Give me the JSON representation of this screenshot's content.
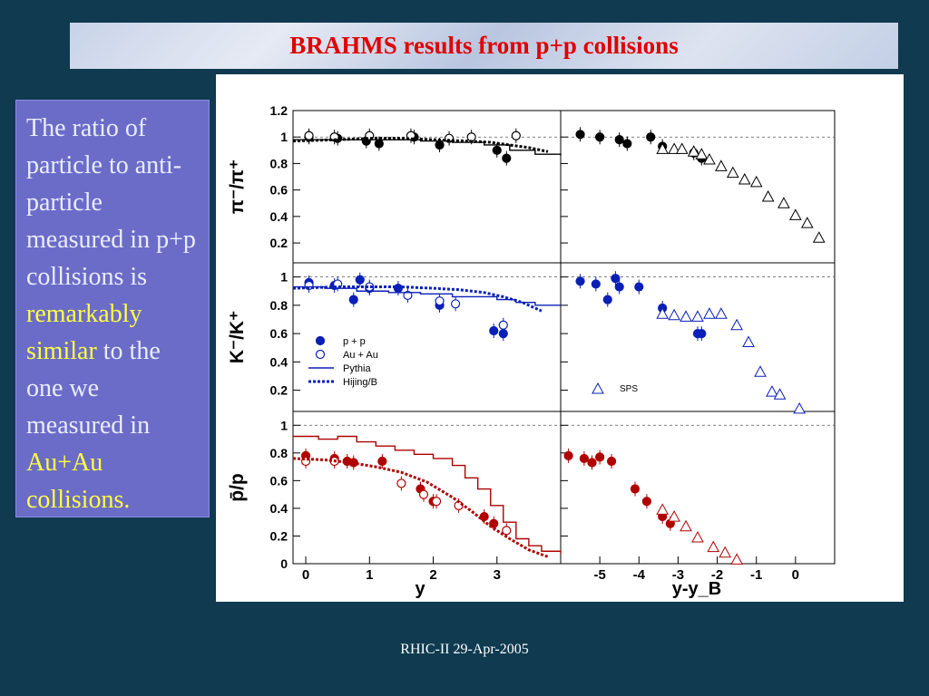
{
  "title": "BRAHMS results from p+p collisions",
  "sidebar": {
    "t1": "The ratio of particle to anti-particle measured in p+p collisions is ",
    "t2": "remarkably similar",
    "t3": " to the one we measured in ",
    "t4": "Au+Au collisions."
  },
  "footer": "RHIC-II 29-Apr-2005",
  "colors": {
    "pion": "#000000",
    "kaon": "#0a1fb8",
    "proton": "#b00000",
    "title": "#e00000",
    "highlight": "#ffff40",
    "sidebar_bg": "#6b6cc8"
  },
  "chart_data": [
    {
      "type": "scatter",
      "panel": "pi-left",
      "ylabel": "π⁻/π⁺",
      "xlabel": "y",
      "xlim": [
        -0.2,
        4.0
      ],
      "ylim": [
        0.05,
        1.2
      ],
      "yticks": [
        0.2,
        0.4,
        0.6,
        0.8,
        1,
        1.2
      ],
      "ref_line": 1,
      "color": "#000000",
      "series": [
        {
          "name": "p + p",
          "marker": "filled-circle",
          "x": [
            0.05,
            0.5,
            0.95,
            1.15,
            1.7,
            2.1,
            3.0,
            3.15
          ],
          "y": [
            1.0,
            0.99,
            0.97,
            0.95,
            1.0,
            0.94,
            0.9,
            0.84
          ]
        },
        {
          "name": "Au + Au",
          "marker": "open-circle",
          "x": [
            0.05,
            0.45,
            1.0,
            1.65,
            2.25,
            2.6,
            3.3
          ],
          "y": [
            1.01,
            1.0,
            1.01,
            1.01,
            0.99,
            1.0,
            1.01
          ]
        },
        {
          "name": "Pythia",
          "style": "step",
          "x": [
            -0.2,
            0.3,
            0.8,
            1.3,
            1.8,
            2.3,
            2.8,
            3.2,
            3.6,
            4.0
          ],
          "y": [
            0.98,
            0.98,
            0.98,
            0.98,
            0.97,
            0.96,
            0.94,
            0.9,
            0.87,
            0.86
          ]
        },
        {
          "name": "Hijing/B",
          "style": "dotted",
          "x": [
            -0.2,
            0.5,
            1.0,
            1.5,
            2.0,
            2.5,
            2.9,
            3.2,
            3.5,
            3.8
          ],
          "y": [
            0.97,
            0.98,
            0.99,
            0.99,
            0.98,
            0.97,
            0.96,
            0.94,
            0.92,
            0.89
          ]
        }
      ]
    },
    {
      "type": "scatter",
      "panel": "pi-right",
      "xlabel": "y-y_B",
      "xlim": [
        -6.0,
        1.0
      ],
      "ylim": [
        0.05,
        1.2
      ],
      "ref_line": 1,
      "color": "#000000",
      "series": [
        {
          "name": "p + p",
          "marker": "filled-circle",
          "x": [
            -5.5,
            -5.0,
            -4.5,
            -4.3,
            -3.7,
            -3.4,
            -2.6,
            -2.4
          ],
          "y": [
            1.02,
            1.0,
            0.98,
            0.95,
            1.0,
            0.93,
            0.88,
            0.84
          ]
        },
        {
          "name": "SPS",
          "marker": "open-triangle",
          "x": [
            -3.4,
            -3.1,
            -2.9,
            -2.6,
            -2.4,
            -2.2,
            -1.9,
            -1.6,
            -1.3,
            -1.0,
            -0.7,
            -0.3,
            0.0,
            0.3,
            0.6
          ],
          "y": [
            0.91,
            0.91,
            0.91,
            0.89,
            0.87,
            0.83,
            0.78,
            0.73,
            0.68,
            0.66,
            0.55,
            0.5,
            0.41,
            0.35,
            0.24
          ]
        }
      ]
    },
    {
      "type": "scatter",
      "panel": "kaon-left",
      "ylabel": "K⁻/K⁺",
      "xlim": [
        -0.2,
        4.0
      ],
      "ylim": [
        0.05,
        1.1
      ],
      "yticks": [
        0.2,
        0.4,
        0.6,
        0.8,
        1
      ],
      "ref_line": 1,
      "color": "#0a1fb8",
      "legend": [
        "p + p",
        "Au + Au",
        "Pythia",
        "Hijing/B"
      ],
      "series": [
        {
          "name": "p + p",
          "marker": "filled-circle",
          "x": [
            0.05,
            0.45,
            0.75,
            0.85,
            1.0,
            1.45,
            2.1,
            2.95,
            3.1
          ],
          "y": [
            0.96,
            0.94,
            0.84,
            0.98,
            0.92,
            0.92,
            0.8,
            0.62,
            0.6
          ]
        },
        {
          "name": "Au + Au",
          "marker": "open-circle",
          "x": [
            0.05,
            0.5,
            1.0,
            1.6,
            2.1,
            2.35,
            3.1
          ],
          "y": [
            0.94,
            0.95,
            0.93,
            0.87,
            0.83,
            0.81,
            0.66
          ]
        },
        {
          "name": "Pythia",
          "style": "step",
          "x": [
            -0.2,
            0.3,
            0.8,
            1.3,
            1.8,
            2.3,
            2.7,
            3.0,
            3.3,
            3.6,
            4.0
          ],
          "y": [
            0.93,
            0.92,
            0.9,
            0.89,
            0.88,
            0.86,
            0.86,
            0.84,
            0.82,
            0.8,
            0.8
          ]
        },
        {
          "name": "Hijing/B",
          "style": "dotted",
          "x": [
            -0.2,
            0.5,
            1.0,
            1.5,
            2.0,
            2.4,
            2.8,
            3.1,
            3.4,
            3.7
          ],
          "y": [
            0.92,
            0.93,
            0.93,
            0.93,
            0.92,
            0.91,
            0.89,
            0.86,
            0.82,
            0.76
          ]
        }
      ]
    },
    {
      "type": "scatter",
      "panel": "kaon-right",
      "xlim": [
        -6.0,
        1.0
      ],
      "ylim": [
        0.05,
        1.1
      ],
      "ref_line": 1,
      "color": "#0a1fb8",
      "annotation": "SPS",
      "series": [
        {
          "name": "p + p",
          "marker": "filled-circle",
          "x": [
            -5.5,
            -5.1,
            -4.8,
            -4.6,
            -4.5,
            -4.0,
            -3.4,
            -2.5,
            -2.4
          ],
          "y": [
            0.97,
            0.95,
            0.84,
            0.99,
            0.93,
            0.93,
            0.78,
            0.6,
            0.6
          ]
        },
        {
          "name": "SPS",
          "marker": "open-triangle",
          "x": [
            -3.4,
            -3.1,
            -2.8,
            -2.5,
            -2.2,
            -1.9,
            -1.5,
            -1.2,
            -0.9,
            -0.6,
            -0.4,
            0.1
          ],
          "y": [
            0.74,
            0.73,
            0.72,
            0.72,
            0.74,
            0.74,
            0.66,
            0.54,
            0.33,
            0.19,
            0.17,
            0.07
          ]
        }
      ]
    },
    {
      "type": "scatter",
      "panel": "proton-left",
      "ylabel": "p̄/p",
      "xlabel": "y",
      "xticks": [
        0,
        1,
        2,
        3
      ],
      "xlim": [
        -0.2,
        4.0
      ],
      "ylim": [
        0.0,
        1.1
      ],
      "yticks": [
        0,
        0.2,
        0.4,
        0.6,
        0.8,
        1
      ],
      "ref_line": 1,
      "color": "#b00000",
      "series": [
        {
          "name": "p + p",
          "marker": "filled-circle",
          "x": [
            0.0,
            0.45,
            0.65,
            0.75,
            1.2,
            1.8,
            2.0,
            2.8,
            2.95
          ],
          "y": [
            0.78,
            0.76,
            0.74,
            0.73,
            0.74,
            0.54,
            0.45,
            0.34,
            0.29
          ]
        },
        {
          "name": "Au + Au",
          "marker": "open-circle",
          "x": [
            0.0,
            0.45,
            1.5,
            1.85,
            2.05,
            2.4,
            3.15
          ],
          "y": [
            0.74,
            0.74,
            0.58,
            0.5,
            0.45,
            0.42,
            0.24
          ]
        },
        {
          "name": "Pythia",
          "style": "step",
          "x": [
            -0.2,
            0.2,
            0.5,
            0.8,
            1.1,
            1.4,
            1.7,
            2.0,
            2.3,
            2.5,
            2.7,
            2.9,
            3.1,
            3.3,
            3.5,
            3.7,
            4.0
          ],
          "y": [
            0.92,
            0.9,
            0.92,
            0.88,
            0.85,
            0.82,
            0.79,
            0.76,
            0.71,
            0.62,
            0.54,
            0.42,
            0.3,
            0.18,
            0.13,
            0.09,
            0.07
          ]
        },
        {
          "name": "Hijing/B",
          "style": "dotted",
          "x": [
            -0.2,
            0.3,
            0.7,
            1.1,
            1.5,
            1.9,
            2.3,
            2.6,
            2.9,
            3.2,
            3.5,
            3.8
          ],
          "y": [
            0.76,
            0.75,
            0.73,
            0.7,
            0.66,
            0.59,
            0.48,
            0.38,
            0.27,
            0.18,
            0.1,
            0.05
          ]
        }
      ]
    },
    {
      "type": "scatter",
      "panel": "proton-right",
      "xlabel": "y-y_B",
      "xticks": [
        -5,
        -4,
        -3,
        -2,
        -1,
        0
      ],
      "xlim": [
        -6.0,
        1.0
      ],
      "ylim": [
        0.0,
        1.1
      ],
      "ref_line": 1,
      "color": "#b00000",
      "series": [
        {
          "name": "p + p",
          "marker": "filled-circle",
          "x": [
            -5.8,
            -5.4,
            -5.2,
            -5.0,
            -4.7,
            -4.1,
            -3.8,
            -3.4,
            -3.2
          ],
          "y": [
            0.78,
            0.76,
            0.73,
            0.77,
            0.74,
            0.54,
            0.45,
            0.34,
            0.29
          ]
        },
        {
          "name": "Au + Au",
          "marker": "open-triangle",
          "x": [
            -3.4,
            -3.1,
            -2.8,
            -2.5,
            -2.1,
            -1.8,
            -1.5
          ],
          "y": [
            0.39,
            0.34,
            0.27,
            0.19,
            0.12,
            0.08,
            0.03
          ]
        }
      ]
    }
  ]
}
